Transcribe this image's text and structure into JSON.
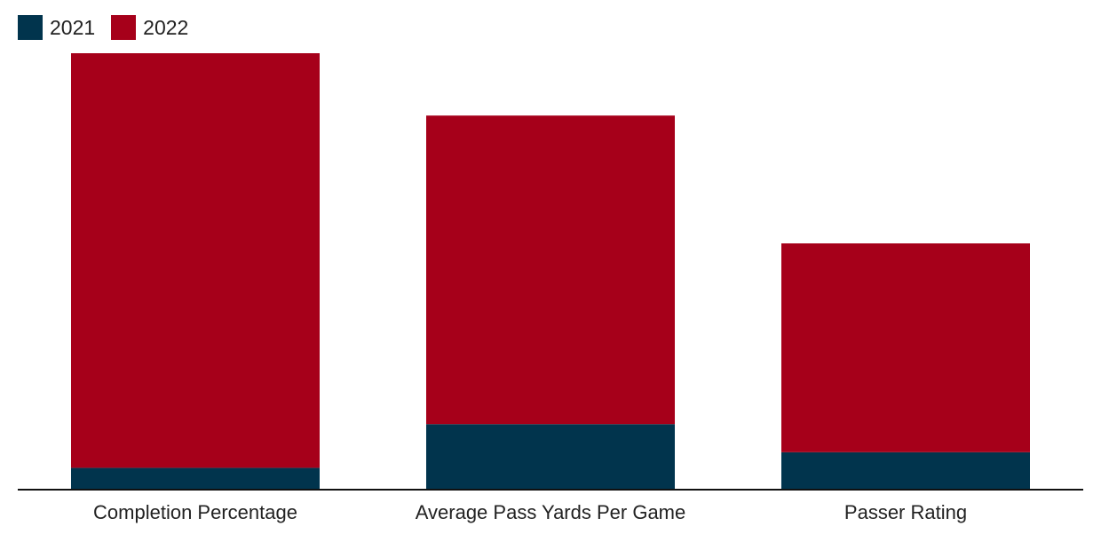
{
  "chart_data": {
    "type": "bar",
    "stacked": true,
    "categories": [
      "Completion Percentage",
      "Average Pass Yards Per Game",
      "Passer Rating"
    ],
    "series": [
      {
        "name": "2021",
        "color": "#01344d",
        "values": [
          0.7,
          2.1,
          1.2
        ]
      },
      {
        "name": "2022",
        "color": "#a6001a",
        "values": [
          13.3,
          9.9,
          6.7
        ]
      }
    ],
    "ylim": [
      0,
      14
    ],
    "grid": false,
    "legend": "top-left",
    "xlabel": "",
    "ylabel": ""
  }
}
